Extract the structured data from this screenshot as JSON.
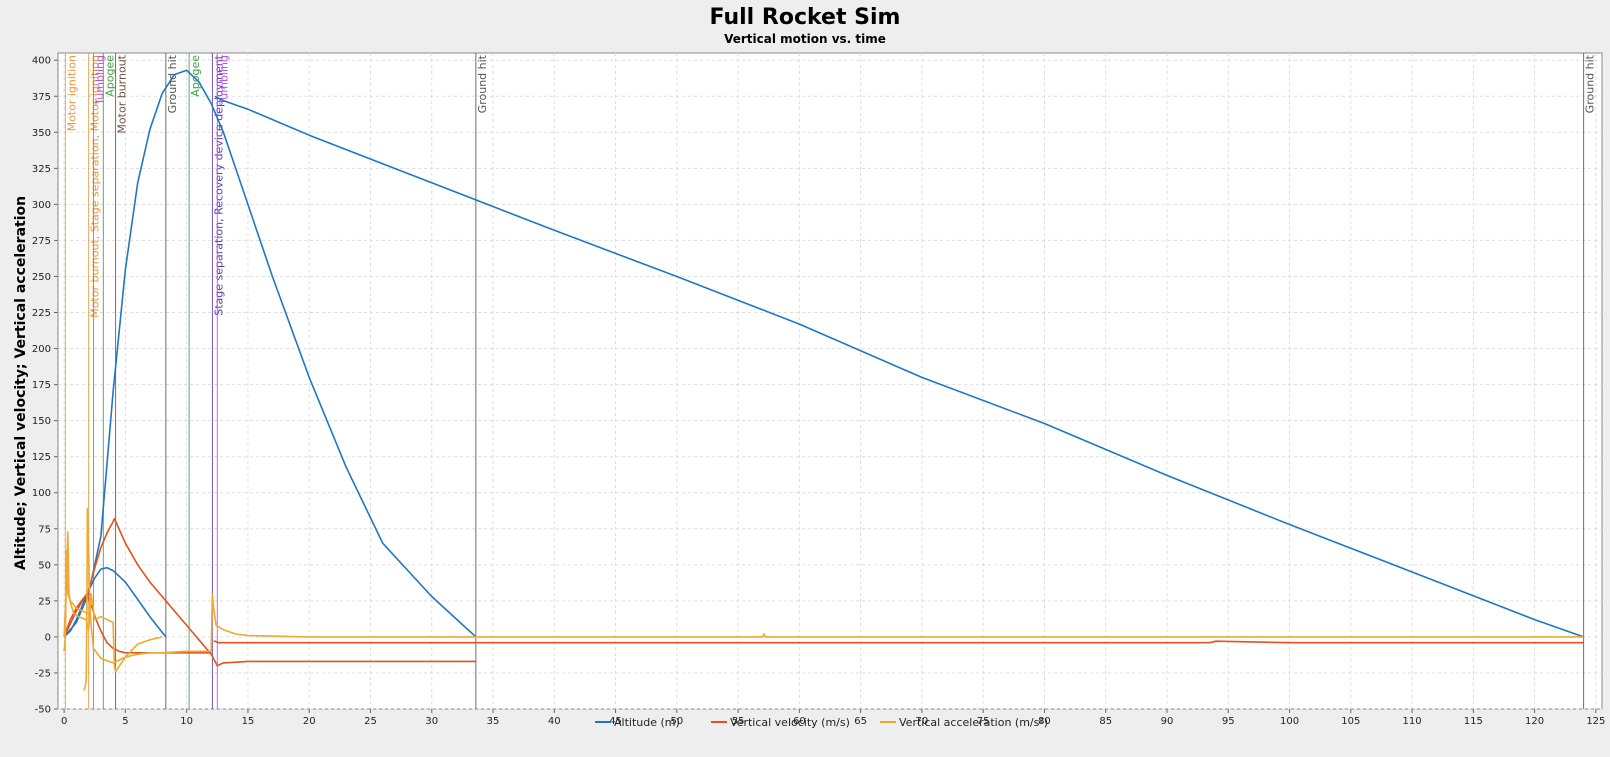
{
  "chart_data": {
    "type": "line",
    "title": "Full Rocket Sim",
    "subtitle": "Vertical motion vs. time",
    "xlabel": "",
    "ylabel": "Altitude; Vertical velocity; Vertical acceleration",
    "xlim": [
      -0.5,
      125.5
    ],
    "ylim": [
      -50,
      405
    ],
    "xticks": [
      0,
      5,
      10,
      15,
      20,
      25,
      30,
      35,
      40,
      45,
      50,
      55,
      60,
      65,
      70,
      75,
      80,
      85,
      90,
      95,
      100,
      105,
      110,
      115,
      120,
      125
    ],
    "yticks": [
      -50,
      -25,
      0,
      25,
      50,
      75,
      100,
      125,
      150,
      175,
      200,
      225,
      250,
      275,
      300,
      325,
      350,
      375,
      400
    ],
    "grid": true,
    "legend_position": "bottom",
    "legend": [
      {
        "label": "Altitude (m)",
        "color": "#1f77c4"
      },
      {
        "label": "Vertical velocity (m/s)",
        "color": "#e0531c"
      },
      {
        "label": "Vertical acceleration (m/s²)",
        "color": "#f0a830"
      }
    ],
    "series": [
      {
        "name": "Altitude (m)",
        "color": "#1f77c4",
        "x": [
          0,
          0.5,
          1,
          1.5,
          2,
          2.5,
          3,
          3.5,
          4,
          5,
          6,
          7,
          8.3
        ],
        "y": [
          0,
          4,
          12,
          22,
          32,
          41,
          47,
          48,
          46,
          38,
          26,
          14,
          0
        ]
      },
      {
        "name": "Altitude (m)",
        "color": "#1f77c4",
        "x": [
          0,
          1,
          2,
          3,
          4,
          5,
          6,
          7,
          8,
          9,
          10,
          11,
          12,
          13,
          15,
          17,
          20,
          23,
          26,
          30,
          33.6
        ],
        "y": [
          0,
          10,
          30,
          70,
          170,
          255,
          315,
          352,
          377,
          390,
          393,
          385,
          370,
          350,
          300,
          250,
          180,
          118,
          65,
          28,
          0
        ]
      },
      {
        "name": "Altitude (m)",
        "color": "#1f77c4",
        "x": [
          12.3,
          13,
          15,
          20,
          30,
          40,
          50,
          60,
          70,
          80,
          90,
          100,
          110,
          120,
          124
        ],
        "y": [
          375,
          372,
          366,
          348,
          315,
          282,
          250,
          217,
          180,
          148,
          112,
          78,
          45,
          12,
          0
        ]
      },
      {
        "name": "Vertical velocity (m/s)",
        "color": "#e0531c",
        "x": [
          0,
          0.5,
          1,
          1.5,
          1.9,
          2,
          2.3,
          2.6,
          3,
          3.5,
          4,
          4.5,
          5,
          6,
          7,
          8,
          9,
          10,
          11,
          12.0
        ],
        "y": [
          0,
          12,
          20,
          26,
          30,
          26,
          20,
          12,
          4,
          -4,
          -8,
          -10,
          -11,
          -11,
          -11,
          -11,
          -11,
          -11,
          -11,
          -11
        ]
      },
      {
        "name": "Vertical velocity (m/s)",
        "color": "#e0531c",
        "x": [
          0,
          1,
          2,
          2.5,
          3,
          3.5,
          4,
          4.1,
          5,
          6,
          7,
          8,
          9,
          10,
          11,
          12,
          12.5,
          13,
          15,
          20,
          25,
          30,
          33.6
        ],
        "y": [
          0,
          18,
          32,
          48,
          62,
          72,
          80,
          82,
          65,
          50,
          38,
          28,
          18,
          8,
          -2,
          -12,
          -20,
          -18,
          -17,
          -17,
          -17,
          -17,
          -17
        ]
      },
      {
        "name": "Vertical velocity (m/s)",
        "color": "#e0531c",
        "x": [
          12.2,
          12.3,
          12.6,
          13,
          15,
          20,
          30,
          40,
          50,
          60,
          70,
          80,
          90,
          93.5,
          94,
          100,
          110,
          120,
          124
        ],
        "y": [
          -3,
          -3,
          -4,
          -4,
          -4,
          -4,
          -4,
          -4,
          -4,
          -4,
          -4,
          -4,
          -4,
          -4,
          -3,
          -4,
          -4,
          -4,
          -4
        ]
      },
      {
        "name": "Vertical acceleration (m/s²)",
        "color": "#f0a830",
        "x": [
          0,
          0.1,
          0.2,
          0.3,
          0.4,
          0.5,
          0.8,
          1.2,
          1.8,
          2.0,
          2.2,
          2.5,
          3.0,
          3.5,
          4.0,
          4.1,
          4.2,
          5,
          6,
          7,
          8
        ],
        "y": [
          0,
          20,
          40,
          73,
          30,
          24,
          16,
          14,
          12,
          5,
          30,
          12,
          14,
          12,
          10,
          -20,
          -24,
          -14,
          -5,
          -2,
          0
        ]
      },
      {
        "name": "Vertical acceleration (m/s²)",
        "color": "#f0a830",
        "x": [
          1.6,
          1.7,
          1.8,
          1.85,
          1.9,
          2.0,
          2.1,
          2.2,
          2.4,
          3,
          4,
          5,
          6,
          7,
          8,
          10,
          12,
          12.1,
          12.2,
          12.4,
          13,
          14,
          15,
          20,
          30,
          40,
          50,
          57,
          57.1,
          57.2,
          60,
          70,
          80,
          90,
          100,
          110,
          120,
          124
        ],
        "y": [
          -37,
          -35,
          -30,
          10,
          89,
          60,
          20,
          8,
          -8,
          -15,
          -18,
          -14,
          -12,
          -11,
          -11,
          -10,
          -10,
          30,
          20,
          8,
          5,
          2,
          1,
          0,
          0,
          0,
          0,
          0,
          2,
          0,
          0,
          0,
          0,
          0,
          0,
          0,
          0,
          0
        ]
      },
      {
        "name": "Vertical acceleration (m/s²)",
        "color": "#f0a830",
        "x": [
          0,
          0.1,
          0.2,
          0.3,
          0.5,
          1.0,
          1.5,
          2.0
        ],
        "y": [
          -10,
          0,
          60,
          30,
          25,
          20,
          18,
          16
        ]
      }
    ],
    "events": [
      {
        "x": 0.1,
        "label": "Motor ignition",
        "color": "#e8983a"
      },
      {
        "x": 2.0,
        "label": "Motor burnout, Stage separation, Motor ignition",
        "color": "#e8983a"
      },
      {
        "x": 2.4,
        "label": "Tumbling",
        "color": "#c050e0"
      },
      {
        "x": 3.2,
        "label": "Apogee",
        "color": "#40a040"
      },
      {
        "x": 4.2,
        "label": "Motor burnout",
        "color": "#6b5040"
      },
      {
        "x": 8.3,
        "label": "Ground hit",
        "color": "#555555"
      },
      {
        "x": 10.2,
        "label": "Apogee",
        "color": "#40a040"
      },
      {
        "x": 12.1,
        "label": "Stage separation, Recovery device deployment",
        "color": "#5a3ab0"
      },
      {
        "x": 12.5,
        "label": "Tumbling",
        "color": "#c050e0"
      },
      {
        "x": 33.6,
        "label": "Ground hit",
        "color": "#555555"
      },
      {
        "x": 124,
        "label": "Ground hit",
        "color": "#555555"
      }
    ]
  }
}
